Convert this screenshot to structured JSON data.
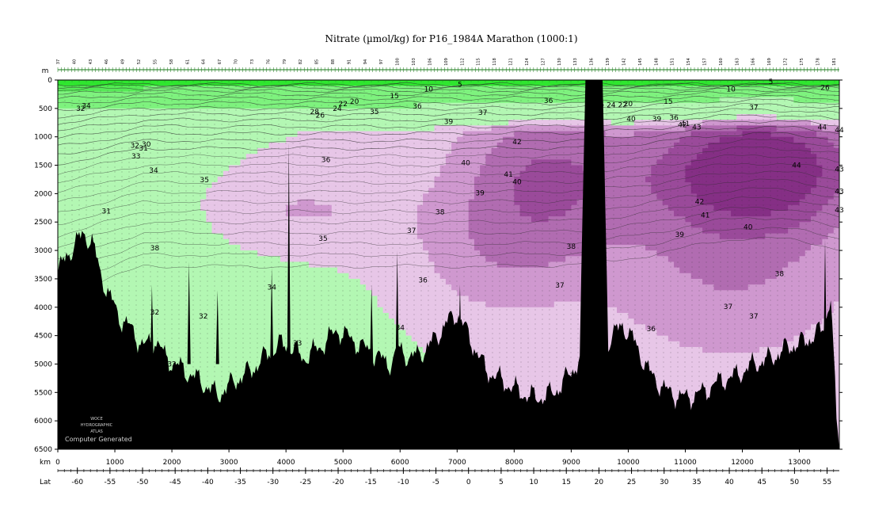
{
  "chart_data": {
    "type": "heatmap",
    "title": "Nitrate (µmol/kg) for P16_1984A Marathon (1000:1)",
    "xlabel": "km",
    "ylabel": "m",
    "lat_label": "Lat",
    "xlim": [
      0,
      13700
    ],
    "ylim": [
      0,
      6500
    ],
    "y_inverted": true,
    "lat_range": [
      -63,
      56
    ],
    "x_ticks": [
      0,
      1000,
      2000,
      3000,
      4000,
      5000,
      6000,
      7000,
      8000,
      9000,
      10000,
      11000,
      12000,
      13000
    ],
    "y_ticks": [
      0,
      500,
      1000,
      1500,
      2000,
      2500,
      3000,
      3500,
      4000,
      4500,
      5000,
      5500,
      6000,
      6500
    ],
    "lat_ticks": [
      -60,
      -55,
      -50,
      -45,
      -40,
      -35,
      -30,
      -25,
      -20,
      -15,
      -10,
      -5,
      0,
      5,
      10,
      15,
      20,
      25,
      30,
      35,
      40,
      45,
      50,
      55
    ],
    "station_labels": [
      "37",
      "40",
      "43",
      "46",
      "49",
      "52",
      "55",
      "58",
      "61",
      "64",
      "67",
      "70",
      "73",
      "76",
      "79",
      "82",
      "85",
      "88",
      "91",
      "94",
      "97",
      "100",
      "103",
      "106",
      "109",
      "112",
      "115",
      "118",
      "121",
      "124",
      "127",
      "130",
      "133",
      "136",
      "139",
      "142",
      "145",
      "148",
      "151",
      "154",
      "157",
      "160",
      "163",
      "166",
      "169",
      "172",
      "175",
      "178",
      "181"
    ],
    "color_levels": [
      {
        "max": 5,
        "color": "#2fe62f"
      },
      {
        "max": 15,
        "color": "#57ea57"
      },
      {
        "max": 25,
        "color": "#7ef27e"
      },
      {
        "max": 35,
        "color": "#b3f7b3"
      },
      {
        "max": 37,
        "color": "#e7c6e7"
      },
      {
        "max": 39,
        "color": "#cf98cf"
      },
      {
        "max": 41,
        "color": "#b16cb1"
      },
      {
        "max": 43,
        "color": "#9a4a9a"
      },
      {
        "max": 45,
        "color": "#852f85"
      }
    ],
    "contour_labels": [
      {
        "text": "5",
        "x": 7050,
        "y": 80
      },
      {
        "text": "5",
        "x": 12500,
        "y": 30
      },
      {
        "text": "10",
        "x": 6500,
        "y": 160
      },
      {
        "text": "10",
        "x": 11800,
        "y": 160
      },
      {
        "text": "15",
        "x": 5900,
        "y": 280
      },
      {
        "text": "15",
        "x": 10700,
        "y": 380
      },
      {
        "text": "20",
        "x": 5200,
        "y": 380
      },
      {
        "text": "20",
        "x": 10000,
        "y": 420
      },
      {
        "text": "22",
        "x": 5000,
        "y": 420
      },
      {
        "text": "22",
        "x": 9900,
        "y": 440
      },
      {
        "text": "24",
        "x": 4900,
        "y": 500
      },
      {
        "text": "24",
        "x": 9700,
        "y": 440
      },
      {
        "text": "26",
        "x": 4600,
        "y": 620
      },
      {
        "text": "26",
        "x": 13450,
        "y": 130
      },
      {
        "text": "28",
        "x": 4500,
        "y": 560
      },
      {
        "text": "30",
        "x": 1550,
        "y": 1130
      },
      {
        "text": "31",
        "x": 1500,
        "y": 1200
      },
      {
        "text": "32",
        "x": 1350,
        "y": 1150
      },
      {
        "text": "32",
        "x": 400,
        "y": 500
      },
      {
        "text": "33",
        "x": 1370,
        "y": 1340
      },
      {
        "text": "34",
        "x": 1680,
        "y": 1590
      },
      {
        "text": "34",
        "x": 500,
        "y": 450
      },
      {
        "text": "35",
        "x": 2570,
        "y": 1760
      },
      {
        "text": "35",
        "x": 5550,
        "y": 560
      },
      {
        "text": "35",
        "x": 4650,
        "y": 2790
      },
      {
        "text": "35",
        "x": 9500,
        "y": 430
      },
      {
        "text": "36",
        "x": 4700,
        "y": 1400
      },
      {
        "text": "36",
        "x": 6300,
        "y": 460
      },
      {
        "text": "36",
        "x": 8600,
        "y": 360
      },
      {
        "text": "36",
        "x": 10800,
        "y": 660
      },
      {
        "text": "36",
        "x": 6400,
        "y": 3520
      },
      {
        "text": "36",
        "x": 10400,
        "y": 4380
      },
      {
        "text": "37",
        "x": 7450,
        "y": 570
      },
      {
        "text": "37",
        "x": 12200,
        "y": 480
      },
      {
        "text": "37",
        "x": 6200,
        "y": 2650
      },
      {
        "text": "37",
        "x": 8800,
        "y": 3610
      },
      {
        "text": "37",
        "x": 11750,
        "y": 3990
      },
      {
        "text": "37",
        "x": 12200,
        "y": 4160
      },
      {
        "text": "38",
        "x": 6700,
        "y": 2320
      },
      {
        "text": "38",
        "x": 9000,
        "y": 2930
      },
      {
        "text": "38",
        "x": 12650,
        "y": 3410
      },
      {
        "text": "39",
        "x": 6850,
        "y": 730
      },
      {
        "text": "39",
        "x": 10500,
        "y": 680
      },
      {
        "text": "39",
        "x": 7400,
        "y": 1990
      },
      {
        "text": "39",
        "x": 10900,
        "y": 2720
      },
      {
        "text": "40",
        "x": 7150,
        "y": 1460
      },
      {
        "text": "40",
        "x": 8050,
        "y": 1790
      },
      {
        "text": "40",
        "x": 10050,
        "y": 680
      },
      {
        "text": "40",
        "x": 12100,
        "y": 2590
      },
      {
        "text": "41",
        "x": 7900,
        "y": 1660
      },
      {
        "text": "41",
        "x": 11000,
        "y": 770
      },
      {
        "text": "41",
        "x": 11350,
        "y": 2380
      },
      {
        "text": "42",
        "x": 8050,
        "y": 1090
      },
      {
        "text": "42",
        "x": 10950,
        "y": 790
      },
      {
        "text": "42",
        "x": 11250,
        "y": 2140
      },
      {
        "text": "43",
        "x": 11200,
        "y": 830
      },
      {
        "text": "43",
        "x": 13700,
        "y": 1570
      },
      {
        "text": "43",
        "x": 13700,
        "y": 1960
      },
      {
        "text": "43",
        "x": 13700,
        "y": 2290
      },
      {
        "text": "44",
        "x": 13400,
        "y": 830
      },
      {
        "text": "44",
        "x": 13700,
        "y": 880
      },
      {
        "text": "44",
        "x": 12950,
        "y": 1500
      },
      {
        "text": "32",
        "x": 1700,
        "y": 4090
      },
      {
        "text": "32",
        "x": 2550,
        "y": 4160
      },
      {
        "text": "32",
        "x": 2000,
        "y": 5000
      },
      {
        "text": "33",
        "x": 4200,
        "y": 4630
      },
      {
        "text": "34",
        "x": 3750,
        "y": 3650
      },
      {
        "text": "34",
        "x": 6000,
        "y": 4360
      },
      {
        "text": "38",
        "x": 1700,
        "y": 2960
      },
      {
        "text": "31",
        "x": 850,
        "y": 2310
      },
      {
        "text": "33",
        "x": 9050,
        "y": 5200
      }
    ],
    "watermark_lines": [
      "WOCE",
      "HYDROGRAPHIC",
      "ATLAS"
    ],
    "watermark_caption": "Computer Generated"
  }
}
